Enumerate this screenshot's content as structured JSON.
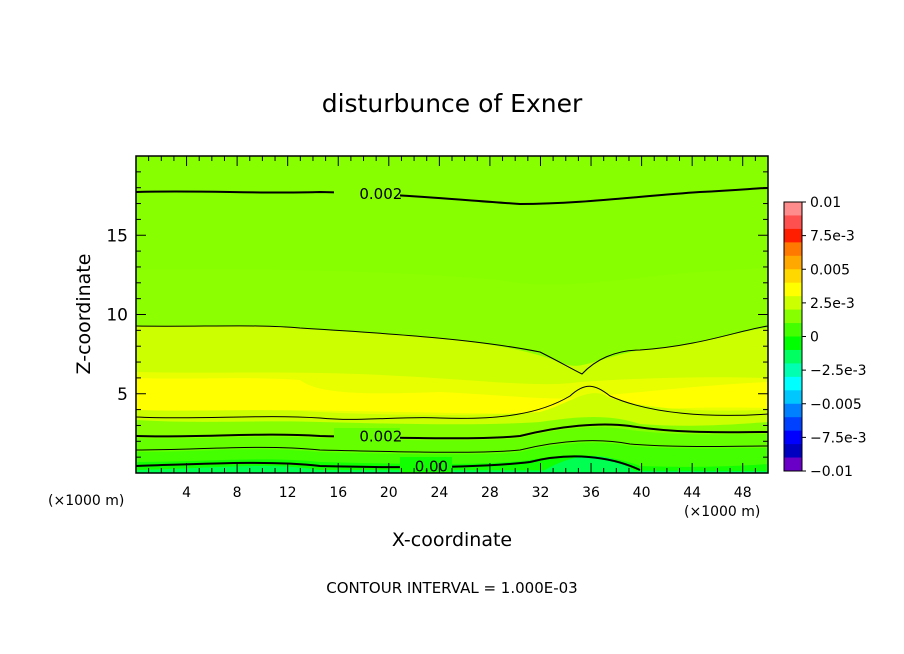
{
  "chart_data": {
    "type": "heatmap",
    "title": "disturbunce of Exner",
    "xlabel": "X-coordinate",
    "ylabel": "Z-coordinate",
    "x_unit": "(×1000 m)",
    "x_unit_right": "(×1000 m)",
    "footer": "CONTOUR INTERVAL = 1.000E-03",
    "xlim": [
      0,
      50
    ],
    "ylim": [
      0,
      20
    ],
    "x_ticks": [
      "4",
      "8",
      "12",
      "16",
      "20",
      "24",
      "28",
      "32",
      "36",
      "40",
      "44",
      "48"
    ],
    "x_tick_values": [
      4,
      8,
      12,
      16,
      20,
      24,
      28,
      32,
      36,
      40,
      44,
      48
    ],
    "y_ticks": [
      "5",
      "10",
      "15"
    ],
    "y_tick_values": [
      5,
      10,
      15
    ],
    "contour_interval": 0.001,
    "contour_labels": [
      {
        "text": "0.002",
        "x": 18.5,
        "z": 17.6
      },
      {
        "text": "0.002",
        "x": 18.5,
        "z": 2.3
      },
      {
        "text": "0.00",
        "x": 22.5,
        "z": 0.4
      }
    ],
    "field_bands": [
      {
        "z": [
          0.0,
          0.5
        ],
        "value": 0.0
      },
      {
        "z": [
          0.5,
          1.2
        ],
        "value": 0.0005
      },
      {
        "z": [
          1.2,
          2.0
        ],
        "value": 0.001
      },
      {
        "z": [
          2.0,
          3.0
        ],
        "value": 0.0015
      },
      {
        "z": [
          3.0,
          4.5
        ],
        "value": 0.0025
      },
      {
        "z": [
          4.5,
          6.0
        ],
        "value": 0.003
      },
      {
        "z": [
          6.0,
          9.0
        ],
        "value": 0.0025
      },
      {
        "z": [
          9.0,
          12.0
        ],
        "value": 0.002
      },
      {
        "z": [
          12.0,
          17.6
        ],
        "value": 0.0015
      },
      {
        "z": [
          17.6,
          20.0
        ],
        "value": 0.0015
      }
    ],
    "colorbar": {
      "labels": [
        "0.01",
        "7.5e-3",
        "0.005",
        "2.5e-3",
        "0",
        "−2.5e-3",
        "−0.005",
        "−7.5e-3",
        "−0.01"
      ],
      "values": [
        0.01,
        0.0075,
        0.005,
        0.0025,
        0,
        -0.0025,
        -0.005,
        -0.0075,
        -0.01
      ],
      "colors_top_to_bottom": [
        "#ff8c8c",
        "#ff5050",
        "#ff1e00",
        "#ff7800",
        "#ffa800",
        "#ffd800",
        "#ffff00",
        "#ccff00",
        "#88ff00",
        "#44ff00",
        "#00ff00",
        "#00ff60",
        "#00ffb0",
        "#00ffff",
        "#00c8ff",
        "#0080ff",
        "#0040ff",
        "#0000ff",
        "#0000c0",
        "#6a00c8"
      ]
    },
    "legend_position": "right",
    "grid": false
  }
}
